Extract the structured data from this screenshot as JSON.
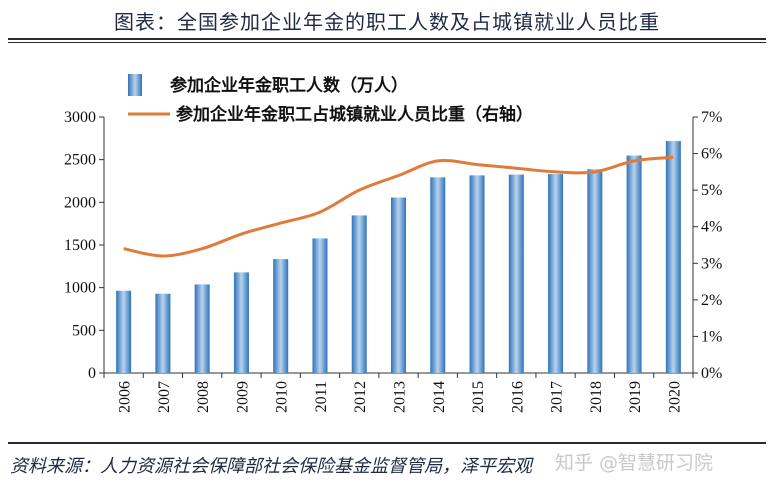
{
  "title": "图表：全国参加企业年金的职工人数及占城镇就业人员比重",
  "source": "资料来源：人力资源社会保障部社会保险基金监督管局，泽平宏观",
  "watermark": "知乎 @智慧研习院",
  "colors": {
    "bar_light": "#b8d3ee",
    "bar_dark": "#2f73b8",
    "line": "#e07b39"
  },
  "chart_data": {
    "type": "bar",
    "categories": [
      "2006",
      "2007",
      "2008",
      "2009",
      "2010",
      "2011",
      "2012",
      "2013",
      "2014",
      "2015",
      "2016",
      "2017",
      "2018",
      "2019",
      "2020"
    ],
    "series": [
      {
        "name": "参加企业年金职工人数（万人）",
        "type": "bar",
        "axis": "left",
        "values": [
          964,
          929,
          1038,
          1179,
          1335,
          1577,
          1847,
          2056,
          2293,
          2316,
          2325,
          2331,
          2388,
          2548,
          2718
        ]
      },
      {
        "name": "参加企业年金职工占城镇就业人员比重（右轴）",
        "type": "line",
        "axis": "right",
        "values": [
          3.4,
          3.2,
          3.4,
          3.8,
          4.1,
          4.4,
          5.0,
          5.4,
          5.8,
          5.7,
          5.6,
          5.5,
          5.5,
          5.8,
          5.9
        ]
      }
    ],
    "y_left": {
      "min": 0,
      "max": 3000,
      "ticks": [
        0,
        500,
        1000,
        1500,
        2000,
        2500,
        3000
      ]
    },
    "y_right": {
      "min": 0,
      "max": 7,
      "ticks": [
        "0%",
        "1%",
        "2%",
        "3%",
        "4%",
        "5%",
        "6%",
        "7%"
      ]
    }
  }
}
